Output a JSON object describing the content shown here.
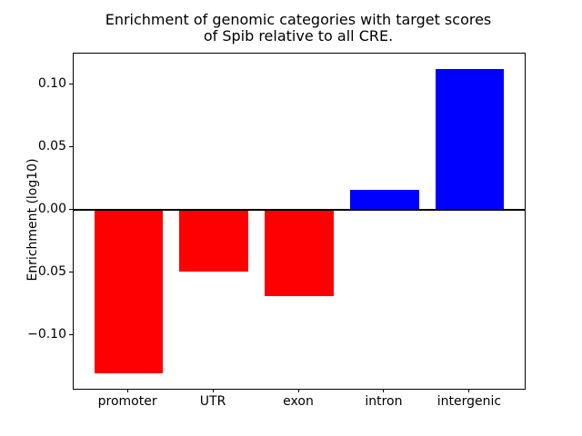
{
  "chart_data": {
    "type": "bar",
    "title": "Enrichment of genomic categories with target scores\nof Spib relative to all CRE.",
    "title_line1": "Enrichment of genomic categories with target scores",
    "title_line2": "of Spib relative to all CRE.",
    "xlabel": "",
    "ylabel": "Enrichment (log10)",
    "categories": [
      "promoter",
      "UTR",
      "exon",
      "intron",
      "intergenic"
    ],
    "values": [
      -0.131,
      -0.049,
      -0.069,
      0.016,
      0.113
    ],
    "bar_colors": [
      "#ff0000",
      "#ff0000",
      "#ff0000",
      "#0000ff",
      "#0000ff"
    ],
    "negative_color": "#ff0000",
    "positive_color": "#0000ff",
    "bar_width_fraction": 0.8,
    "ylim": [
      -0.143,
      0.125
    ],
    "yticks": [
      0.1,
      0.05,
      0.0,
      -0.05,
      -0.1
    ],
    "ytick_labels": [
      "0.10",
      "0.05",
      "0.00",
      "−0.05",
      "−0.10"
    ],
    "grid": false,
    "legend": null,
    "zero_line": true,
    "axis_color": "#000000",
    "background": "#ffffff"
  }
}
